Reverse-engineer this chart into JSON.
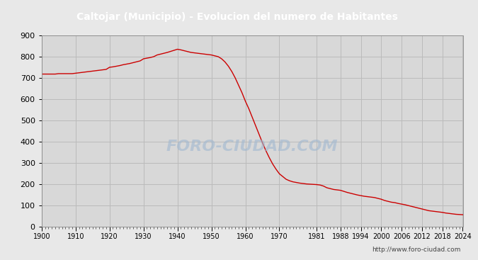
{
  "title": "Caltojar (Municipio) - Evolucion del numero de Habitantes",
  "title_bg_color": "#4a90d9",
  "title_text_color": "#ffffff",
  "line_color": "#cc0000",
  "bg_color": "#e8e8e8",
  "plot_bg_color": "#d8d8d8",
  "grid_color": "#bbbbbb",
  "watermark": "FORO-CIUDAD.COM",
  "watermark_color": "#a0b8d0",
  "url": "http://www.foro-ciudad.com",
  "ylim": [
    0,
    900
  ],
  "yticks": [
    0,
    100,
    200,
    300,
    400,
    500,
    600,
    700,
    800,
    900
  ],
  "xtick_labels": [
    "1900",
    "1910",
    "1920",
    "1930",
    "1940",
    "1950",
    "1960",
    "1970",
    "1981",
    "1988",
    "1994",
    "2000",
    "2006",
    "2012",
    "2018",
    "2024"
  ],
  "years": [
    1900,
    1901,
    1902,
    1903,
    1904,
    1905,
    1906,
    1907,
    1908,
    1909,
    1910,
    1911,
    1912,
    1913,
    1914,
    1915,
    1916,
    1917,
    1918,
    1919,
    1920,
    1921,
    1922,
    1923,
    1924,
    1925,
    1926,
    1927,
    1928,
    1929,
    1930,
    1931,
    1932,
    1933,
    1934,
    1935,
    1936,
    1937,
    1938,
    1939,
    1940,
    1941,
    1942,
    1943,
    1944,
    1945,
    1946,
    1947,
    1948,
    1949,
    1950,
    1951,
    1952,
    1953,
    1954,
    1955,
    1956,
    1957,
    1958,
    1959,
    1960,
    1961,
    1962,
    1963,
    1964,
    1965,
    1966,
    1967,
    1968,
    1969,
    1970,
    1971,
    1972,
    1973,
    1974,
    1975,
    1976,
    1977,
    1978,
    1979,
    1980,
    1981,
    1982,
    1983,
    1984,
    1985,
    1986,
    1987,
    1988,
    1989,
    1990,
    1991,
    1992,
    1993,
    1994,
    1995,
    1996,
    1997,
    1998,
    1999,
    2000,
    2001,
    2002,
    2003,
    2004,
    2005,
    2006,
    2007,
    2008,
    2009,
    2010,
    2011,
    2012,
    2013,
    2014,
    2015,
    2016,
    2017,
    2018,
    2019,
    2020,
    2021,
    2022,
    2023,
    2024
  ],
  "population": [
    718,
    718,
    718,
    718,
    718,
    720,
    720,
    720,
    720,
    720,
    722,
    724,
    726,
    728,
    730,
    732,
    734,
    736,
    738,
    740,
    750,
    752,
    755,
    758,
    762,
    765,
    768,
    772,
    776,
    780,
    790,
    793,
    796,
    800,
    808,
    812,
    816,
    820,
    825,
    830,
    835,
    832,
    828,
    824,
    820,
    818,
    816,
    814,
    812,
    810,
    808,
    804,
    800,
    790,
    775,
    755,
    730,
    700,
    665,
    630,
    590,
    555,
    515,
    475,
    435,
    395,
    358,
    325,
    295,
    270,
    248,
    235,
    222,
    215,
    210,
    207,
    204,
    202,
    200,
    199,
    198,
    197,
    195,
    190,
    182,
    178,
    174,
    172,
    170,
    165,
    160,
    156,
    152,
    148,
    145,
    142,
    140,
    138,
    136,
    132,
    128,
    122,
    118,
    114,
    112,
    108,
    105,
    102,
    98,
    94,
    90,
    86,
    82,
    78,
    74,
    72,
    70,
    68,
    66,
    63,
    61,
    59,
    57,
    56,
    55
  ]
}
